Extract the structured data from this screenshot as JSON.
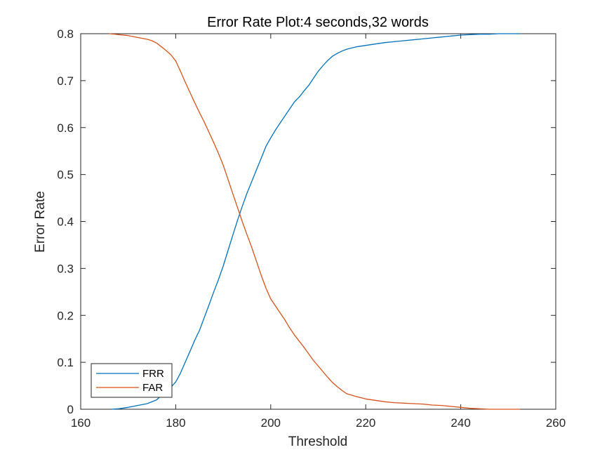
{
  "chart_data": {
    "type": "line",
    "title": "Error Rate Plot:4 seconds,32 words",
    "xlabel": "Threshold",
    "ylabel": "Error Rate",
    "xlim": [
      160,
      260
    ],
    "ylim": [
      0,
      0.8
    ],
    "xticks": [
      "160",
      "180",
      "200",
      "220",
      "240",
      "260"
    ],
    "yticks": [
      "0",
      "0.1",
      "0.2",
      "0.3",
      "0.4",
      "0.5",
      "0.6",
      "0.7",
      "0.8"
    ],
    "grid": false,
    "legend_position": "bottom-left",
    "series": [
      {
        "name": "FRR",
        "color": "#0072BD",
        "x": [
          166.5,
          168,
          170,
          172,
          174,
          176,
          177,
          178,
          179,
          180,
          181,
          182,
          183,
          184,
          185,
          186,
          187,
          188,
          189,
          190,
          191,
          192,
          193,
          194,
          195,
          196,
          197,
          198,
          199,
          200,
          201,
          202,
          203,
          204,
          205,
          206,
          207,
          208,
          209,
          210,
          211,
          212,
          213,
          214,
          215,
          216,
          218,
          220,
          222,
          224,
          226,
          228,
          230,
          232,
          234,
          236,
          238,
          240,
          242,
          244,
          246,
          248,
          250,
          252.5
        ],
        "y": [
          0.0,
          0.001,
          0.004,
          0.008,
          0.012,
          0.02,
          0.03,
          0.037,
          0.047,
          0.058,
          0.077,
          0.1,
          0.123,
          0.147,
          0.168,
          0.195,
          0.222,
          0.25,
          0.276,
          0.305,
          0.338,
          0.37,
          0.402,
          0.432,
          0.46,
          0.485,
          0.51,
          0.535,
          0.56,
          0.578,
          0.595,
          0.61,
          0.625,
          0.64,
          0.655,
          0.665,
          0.678,
          0.69,
          0.705,
          0.72,
          0.732,
          0.743,
          0.752,
          0.758,
          0.763,
          0.767,
          0.772,
          0.775,
          0.778,
          0.781,
          0.783,
          0.785,
          0.787,
          0.789,
          0.791,
          0.793,
          0.795,
          0.797,
          0.798,
          0.799,
          0.799,
          0.8,
          0.8,
          0.8
        ]
      },
      {
        "name": "FAR",
        "color": "#D95319",
        "x": [
          166,
          168,
          170,
          172,
          174,
          175,
          176,
          177,
          178,
          179,
          180,
          181,
          182,
          183,
          184,
          185,
          186,
          187,
          188,
          189,
          190,
          191,
          192,
          193,
          194,
          195,
          196,
          197,
          198,
          199,
          200,
          201,
          202,
          203,
          204,
          205,
          206,
          207,
          208,
          209,
          210,
          211,
          212,
          213,
          214,
          215,
          216,
          218,
          220,
          222,
          224,
          226,
          228,
          230,
          232,
          234,
          236,
          238,
          240,
          242,
          244,
          246,
          248,
          250,
          252.5
        ],
        "y": [
          0.8,
          0.798,
          0.796,
          0.792,
          0.788,
          0.785,
          0.78,
          0.772,
          0.764,
          0.755,
          0.742,
          0.72,
          0.697,
          0.675,
          0.653,
          0.632,
          0.612,
          0.59,
          0.568,
          0.545,
          0.52,
          0.49,
          0.46,
          0.43,
          0.4,
          0.372,
          0.345,
          0.315,
          0.285,
          0.258,
          0.235,
          0.22,
          0.205,
          0.19,
          0.173,
          0.158,
          0.145,
          0.132,
          0.118,
          0.104,
          0.092,
          0.08,
          0.068,
          0.057,
          0.048,
          0.04,
          0.033,
          0.027,
          0.022,
          0.019,
          0.016,
          0.014,
          0.013,
          0.012,
          0.011,
          0.009,
          0.008,
          0.006,
          0.004,
          0.002,
          0.001,
          0.0,
          0.0,
          0.0,
          0.0
        ]
      }
    ]
  }
}
